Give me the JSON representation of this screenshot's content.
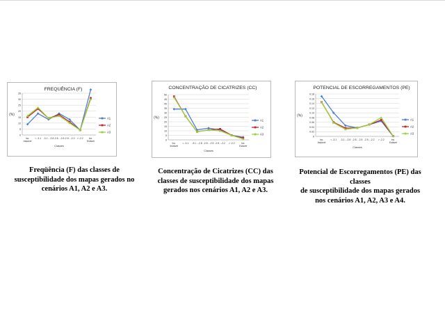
{
  "colors": {
    "A1": "#4a7fd4",
    "A2": "#c0282d",
    "A3": "#9bd13a",
    "A4": "#9bd13a",
    "grid": "#d0d0d0",
    "frame": "#b8b8b8",
    "title": "#1f1f1f"
  },
  "chart_data": [
    {
      "type": "line",
      "title": "FREQUÊNCIA (F)",
      "ylabel": "(%)",
      "xlabel": "Classes",
      "ylim": [
        0,
        35
      ],
      "yticks": [
        "0",
        "5",
        "10",
        "15",
        "20",
        "25",
        "30",
        "35"
      ],
      "categories": [
        "Inc. Instável",
        "< -3.1",
        "-3.1 - -2.8",
        "-2.8 - -2.5",
        "-2.5 - -2.2",
        "> -2.2",
        "Inc. Estável"
      ],
      "series": [
        {
          "name": "A1",
          "values": [
            9,
            18,
            13,
            18,
            13,
            4,
            38
          ]
        },
        {
          "name": "A2",
          "values": [
            15,
            22,
            14,
            17,
            11,
            4,
            31
          ]
        },
        {
          "name": "A3",
          "values": [
            16,
            23,
            14,
            16,
            10,
            4,
            30
          ]
        }
      ],
      "caption": [
        "Freqüência (F) das classes de",
        "susceptibilidade dos mapas gerados no",
        "cenários A1, A2 e A3."
      ]
    },
    {
      "type": "line",
      "title": "CONCENTRAÇÃO DE CICATRIZES (CC)",
      "ylabel": "(%)",
      "xlabel": "Classes",
      "ylim": [
        0,
        50
      ],
      "yticks": [
        "0",
        "5",
        "10",
        "15",
        "20",
        "25",
        "30",
        "35",
        "40",
        "45",
        "50"
      ],
      "categories": [
        "Inc. Instável",
        "< -3.1",
        "-3.1 - -2.8",
        "-2.8 - -2.5",
        "-2.5 - -2.2",
        "> -2.2",
        "Inc. Estável"
      ],
      "series": [
        {
          "name": "A1",
          "values": [
            34,
            34,
            11,
            13,
            11,
            5,
            3
          ]
        },
        {
          "name": "A2",
          "values": [
            48,
            26,
            9,
            11,
            12,
            5,
            2
          ]
        },
        {
          "name": "A3",
          "values": [
            47,
            26,
            9,
            11,
            10,
            5,
            1
          ]
        }
      ],
      "caption": [
        "Concentração de Cicatrizes (CC) das",
        "classes de susceptibilidade dos mapas",
        "gerados nos cenários A1, A2 e A3."
      ]
    },
    {
      "type": "line",
      "title": "POTENCIAL DE ESCORREGAMENTOS (PE)",
      "ylabel": "(%)",
      "xlabel": "Classes",
      "ylim": [
        0,
        0.18
      ],
      "yticks": [
        "0",
        "0.02",
        "0.04",
        "0.06",
        "0.08",
        "0.10",
        "0.12",
        "0.14",
        "0.16",
        "0.18"
      ],
      "categories": [
        "Inc. Instável",
        "< -3.1",
        "-3.1 - -2.8",
        "-2.8 - -2.5",
        "-2.5 - -2.2",
        "> -2.2",
        "Inc. Estável"
      ],
      "series": [
        {
          "name": "A1",
          "values": [
            0.17,
            0.1,
            0.046,
            0.036,
            0.05,
            0.065,
            0.001
          ]
        },
        {
          "name": "A2",
          "values": [
            0.145,
            0.06,
            0.035,
            0.036,
            0.05,
            0.07,
            0.001
          ]
        },
        {
          "name": "A3",
          "values": [
            0.145,
            0.058,
            0.03,
            0.036,
            0.05,
            0.08,
            0.001
          ]
        }
      ],
      "caption": [
        "Potencial de Escorregamentos (PE) das classes",
        "de susceptibilidade dos mapas gerados",
        "nos cenários A1, A2, A3 e A4."
      ]
    }
  ]
}
